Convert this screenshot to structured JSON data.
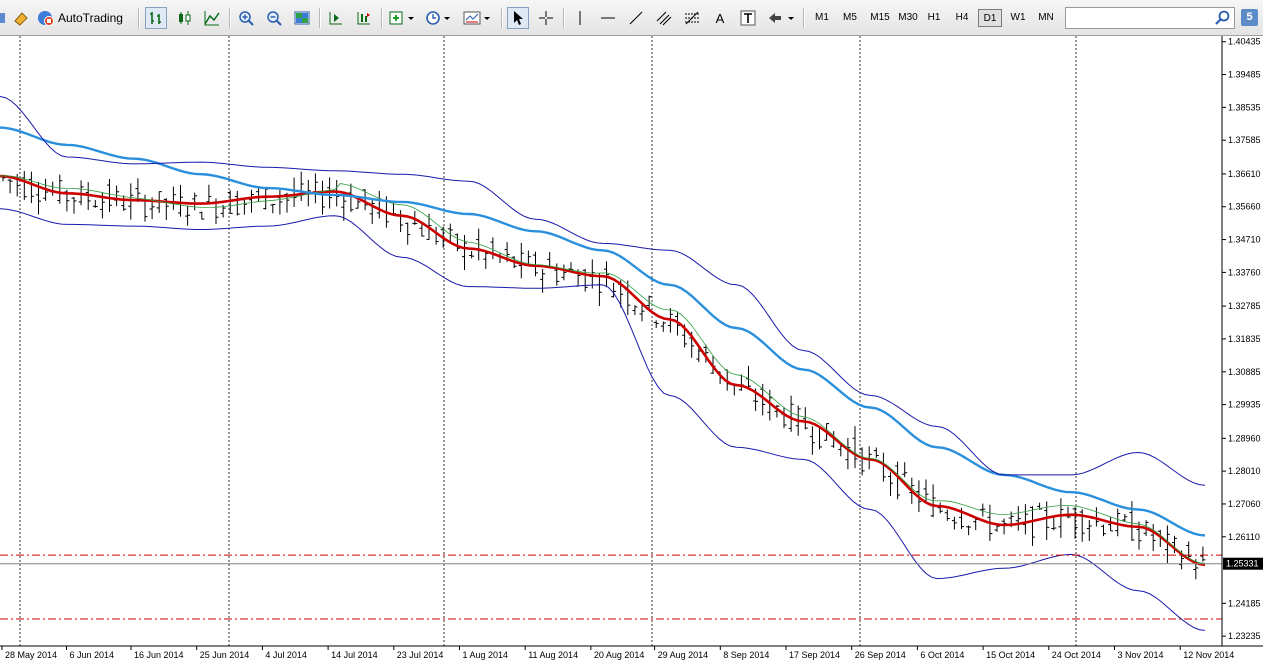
{
  "toolbar": {
    "autotrading_label": "AutoTrading",
    "timeframes": [
      "M1",
      "M5",
      "M15",
      "M30",
      "H1",
      "H4",
      "D1",
      "W1",
      "MN"
    ],
    "active_timeframe": "D1",
    "text_tool_label": "A",
    "search_value": "",
    "badge": "5"
  },
  "price_axis": {
    "ticks": [
      "1.40435",
      "1.39485",
      "1.38535",
      "1.37585",
      "1.36610",
      "1.35660",
      "1.34710",
      "1.33760",
      "1.32785",
      "1.31835",
      "1.30885",
      "1.29935",
      "1.28960",
      "1.28010",
      "1.27060",
      "1.26110",
      "1.25331",
      "1.24185",
      "1.23235"
    ],
    "current_price": "1.25331"
  },
  "time_axis": {
    "labels": [
      "28 May 2014",
      "6 Jun 2014",
      "16 Jun 2014",
      "25 Jun 2014",
      "4 Jul 2014",
      "14 Jul 2014",
      "23 Jul 2014",
      "1 Aug 2014",
      "11 Aug 2014",
      "20 Aug 2014",
      "29 Aug 2014",
      "8 Sep 2014",
      "17 Sep 2014",
      "26 Sep 2014",
      "6 Oct 2014",
      "15 Oct 2014",
      "24 Oct 2014",
      "3 Nov 2014",
      "12 Nov 2014"
    ]
  },
  "chart_data": {
    "type": "line",
    "instrument_timeframe": "D1",
    "description_series": [
      {
        "name": "",
        "role": "ema-red",
        "color": "#cc0000",
        "x": [
          "28 May 2014",
          "6 Jun 2014",
          "16 Jun 2014",
          "25 Jun 2014",
          "4 Jul 2014",
          "14 Jul 2014",
          "23 Jul 2014",
          "1 Aug 2014",
          "11 Aug 2014",
          "20 Aug 2014",
          "29 Aug 2014",
          "8 Sep 2014",
          "17 Sep 2014",
          "26 Sep 2014",
          "6 Oct 2014",
          "15 Oct 2014",
          "24 Oct 2014",
          "3 Nov 2014",
          "12 Nov 2014"
        ],
        "values": [
          1.3655,
          1.3605,
          1.3585,
          1.3575,
          1.3595,
          1.361,
          1.354,
          1.3445,
          1.3395,
          1.3365,
          1.324,
          1.305,
          1.2945,
          1.2835,
          1.27,
          1.2645,
          1.2675,
          1.264,
          1.253
        ]
      },
      {
        "name": "",
        "role": "sma-blue",
        "color": "#2a8fdc",
        "values": [
          1.3795,
          1.3745,
          1.3705,
          1.366,
          1.362,
          1.36,
          1.358,
          1.3545,
          1.3495,
          1.344,
          1.334,
          1.3215,
          1.3095,
          1.2985,
          1.287,
          1.279,
          1.274,
          1.269,
          1.2615
        ]
      },
      {
        "name": "",
        "role": "bollinger-upper",
        "color": "#1a1aaa",
        "values": [
          1.3885,
          1.371,
          1.369,
          1.3695,
          1.368,
          1.367,
          1.366,
          1.364,
          1.353,
          1.346,
          1.344,
          1.334,
          1.315,
          1.302,
          1.293,
          1.279,
          1.279,
          1.2855,
          1.276
        ]
      },
      {
        "name": "",
        "role": "bollinger-lower",
        "color": "#1a1aaa",
        "values": [
          1.356,
          1.3515,
          1.351,
          1.35,
          1.351,
          1.354,
          1.342,
          1.3335,
          1.333,
          1.334,
          1.302,
          1.287,
          1.2835,
          1.269,
          1.249,
          1.252,
          1.256,
          1.2455,
          1.234
        ]
      }
    ],
    "horizontal_levels": [
      {
        "value": 1.2558,
        "style": "dash-dot",
        "color": "#cc0000"
      },
      {
        "value": 1.2373,
        "style": "dash-dot",
        "color": "#cc0000"
      },
      {
        "value": 1.25331,
        "style": "solid",
        "color": "#808080"
      }
    ],
    "ylim": [
      1.2295,
      1.406
    ],
    "grid": "vertical-dotted"
  }
}
